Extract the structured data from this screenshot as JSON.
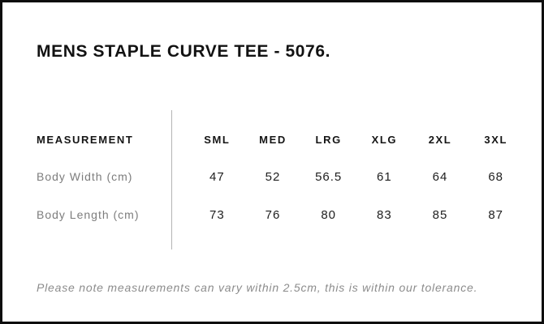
{
  "page_title": "MENS STAPLE CURVE TEE - 5076.",
  "chart_data": {
    "type": "table",
    "title": "MENS STAPLE CURVE TEE - 5076.",
    "columns": [
      "MEASUREMENT",
      "SML",
      "MED",
      "LRG",
      "XLG",
      "2XL",
      "3XL"
    ],
    "rows": [
      [
        "Body Width (cm)",
        "47",
        "52",
        "56.5",
        "61",
        "64",
        "68"
      ],
      [
        "Body Length (cm)",
        "73",
        "76",
        "80",
        "83",
        "85",
        "87"
      ]
    ],
    "footnote": "Please note measurements can vary within 2.5cm, this is within our tolerance."
  },
  "colors": {
    "page_border": "#0d0d0d",
    "title_ink": "#121212",
    "header_ink": "#151515",
    "label_gray": "#7d7d7d",
    "value_ink": "#1e1e1e",
    "divider_gray": "#b4b4b4",
    "note_gray": "#8c8c8c"
  }
}
